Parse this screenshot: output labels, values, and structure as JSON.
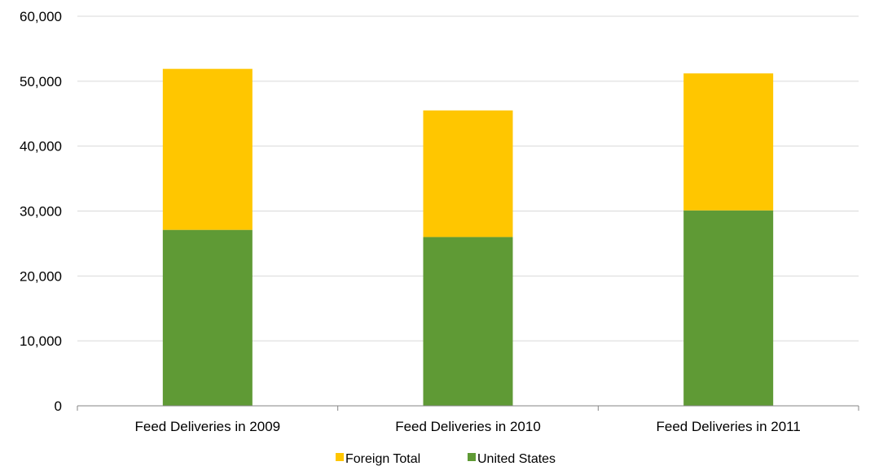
{
  "chart_data": {
    "type": "bar",
    "stacked": true,
    "categories": [
      "Feed Deliveries in 2009",
      "Feed Deliveries in 2010",
      "Feed Deliveries in 2011"
    ],
    "series": [
      {
        "name": "United States",
        "values": [
          27100,
          26000,
          30100
        ],
        "color": "#5f9a35"
      },
      {
        "name": "Foreign Total",
        "values": [
          24800,
          19500,
          21100
        ],
        "color": "#ffc600"
      }
    ],
    "ylim": [
      0,
      60000
    ],
    "yticks": [
      0,
      10000,
      20000,
      30000,
      40000,
      50000,
      60000
    ],
    "ytick_labels": [
      "0",
      "10,000",
      "20,000",
      "30,000",
      "40,000",
      "50,000",
      "60,000"
    ],
    "grid": true,
    "legend": {
      "position": "bottom",
      "items": [
        "Foreign Total",
        "United States"
      ]
    },
    "title": "",
    "xlabel": "",
    "ylabel": ""
  }
}
